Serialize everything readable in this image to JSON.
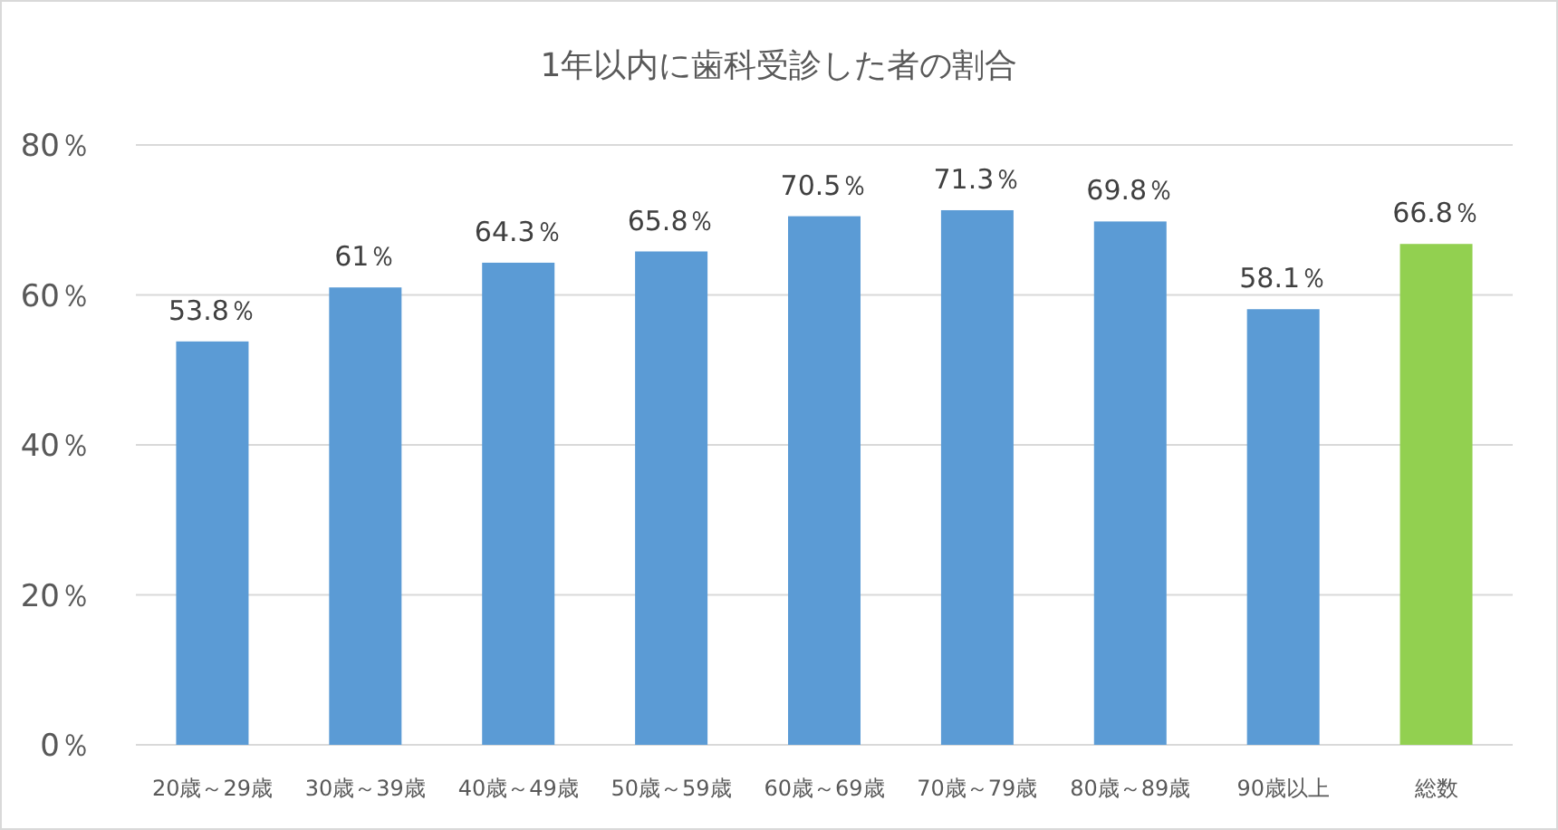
{
  "chart_data": {
    "type": "bar",
    "title": "1年以内に歯科受診した者の割合",
    "categories": [
      "20歳～29歳",
      "30歳～39歳",
      "40歳～49歳",
      "50歳～59歳",
      "60歳～69歳",
      "70歳～79歳",
      "80歳～89歳",
      "90歳以上",
      "総数"
    ],
    "values": [
      53.8,
      61,
      64.3,
      65.8,
      70.5,
      71.3,
      69.8,
      58.1,
      66.8
    ],
    "colors": [
      "#5b9bd5",
      "#5b9bd5",
      "#5b9bd5",
      "#5b9bd5",
      "#5b9bd5",
      "#5b9bd5",
      "#5b9bd5",
      "#5b9bd5",
      "#92d050"
    ],
    "value_labels": [
      "53.8％",
      "61％",
      "64.3％",
      "65.8％",
      "70.5％",
      "71.3％",
      "69.8％",
      "58.1％",
      "66.8％"
    ],
    "ylim": [
      0,
      80
    ],
    "yticks": [
      {
        "value": 0,
        "label": "0％"
      },
      {
        "value": 20,
        "label": "20％"
      },
      {
        "value": 40,
        "label": "40％"
      },
      {
        "value": 60,
        "label": "60％"
      },
      {
        "value": 80,
        "label": "80％"
      }
    ],
    "grid": "y"
  }
}
